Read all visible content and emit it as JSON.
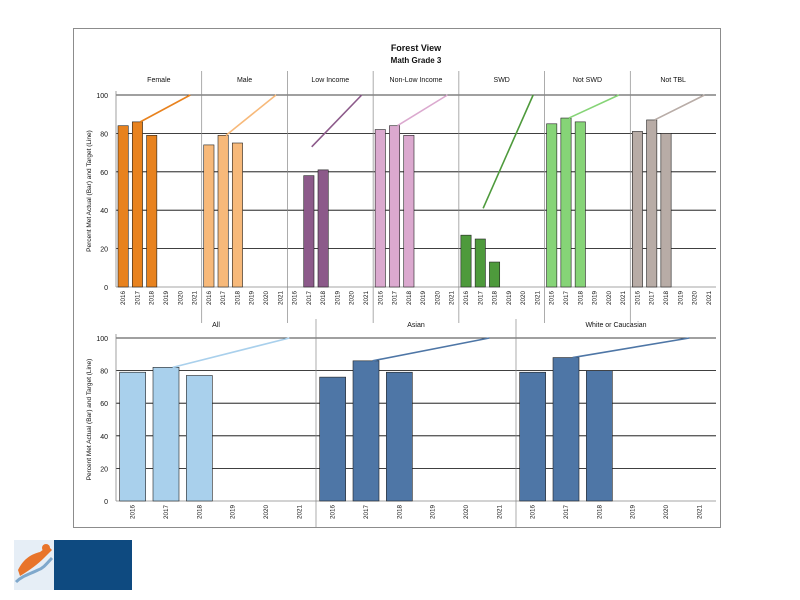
{
  "chart_data": [
    {
      "type": "bar",
      "title": "Forest View",
      "subtitle": "Math Grade 3",
      "ylabel": "Percent Met Actual (Bar) and Target (Line)",
      "ylim": [
        0,
        100
      ],
      "yticks": [
        0,
        20,
        40,
        60,
        80,
        100
      ],
      "grid": true,
      "years": [
        "2016",
        "2017",
        "2018",
        "2019",
        "2020",
        "2021"
      ],
      "panels": [
        {
          "name": "Female",
          "color": "#e8821e",
          "actual": [
            84,
            86,
            79,
            null,
            null,
            null
          ],
          "target": [
            86,
            100
          ]
        },
        {
          "name": "Male",
          "color": "#f7b97a",
          "actual": [
            74,
            79,
            75,
            null,
            null,
            null
          ],
          "target": [
            79,
            100
          ]
        },
        {
          "name": "Low Income",
          "color": "#8c5a8a",
          "actual": [
            null,
            58,
            61,
            null,
            null,
            null
          ],
          "target": [
            73,
            100
          ]
        },
        {
          "name": "Non-Low Income",
          "color": "#dba9cf",
          "actual": [
            82,
            84,
            79,
            null,
            null,
            null
          ],
          "target": [
            84,
            100
          ]
        },
        {
          "name": "SWD",
          "color": "#4e9a3c",
          "actual": [
            27,
            25,
            13,
            null,
            null,
            null
          ],
          "target": [
            41,
            100
          ]
        },
        {
          "name": "Not SWD",
          "color": "#86d477",
          "actual": [
            85,
            88,
            86,
            null,
            null,
            null
          ],
          "target": [
            88,
            100
          ]
        },
        {
          "name": "Not TBL",
          "color": "#b8aca6",
          "actual": [
            81,
            87,
            80,
            null,
            null,
            null
          ],
          "target": [
            87,
            100
          ]
        }
      ]
    },
    {
      "type": "bar",
      "ylabel": "Percent Met Actual (Bar) and Target (Line)",
      "ylim": [
        0,
        100
      ],
      "yticks": [
        0,
        20,
        40,
        60,
        80,
        100
      ],
      "grid": true,
      "years": [
        "2016",
        "2017",
        "2018",
        "2019",
        "2020",
        "2021"
      ],
      "panels": [
        {
          "name": "All",
          "color": "#a9d0ec",
          "actual": [
            79,
            82,
            77,
            null,
            null,
            null
          ],
          "target": [
            82,
            100
          ]
        },
        {
          "name": "Asian",
          "color": "#4e76a6",
          "actual": [
            76,
            86,
            79,
            null,
            null,
            null
          ],
          "target": [
            86,
            100
          ]
        },
        {
          "name": "White or Caucasian",
          "color": "#4e76a6",
          "actual": [
            79,
            88,
            80,
            null,
            null,
            null
          ],
          "target": [
            88,
            100
          ]
        }
      ],
      "panel3_years": [
        "2016",
        "2017",
        "2018",
        "2019",
        "2020",
        "2021"
      ]
    }
  ],
  "style": {
    "frame_border": "#8c8c8c",
    "grid_color": "#000000",
    "bar_outline": "#222222",
    "text_color": "#111111"
  },
  "logo": {
    "icon": "district-logo-icon",
    "bg_color": "#0e4a80",
    "accent_color": "#e8742a"
  }
}
